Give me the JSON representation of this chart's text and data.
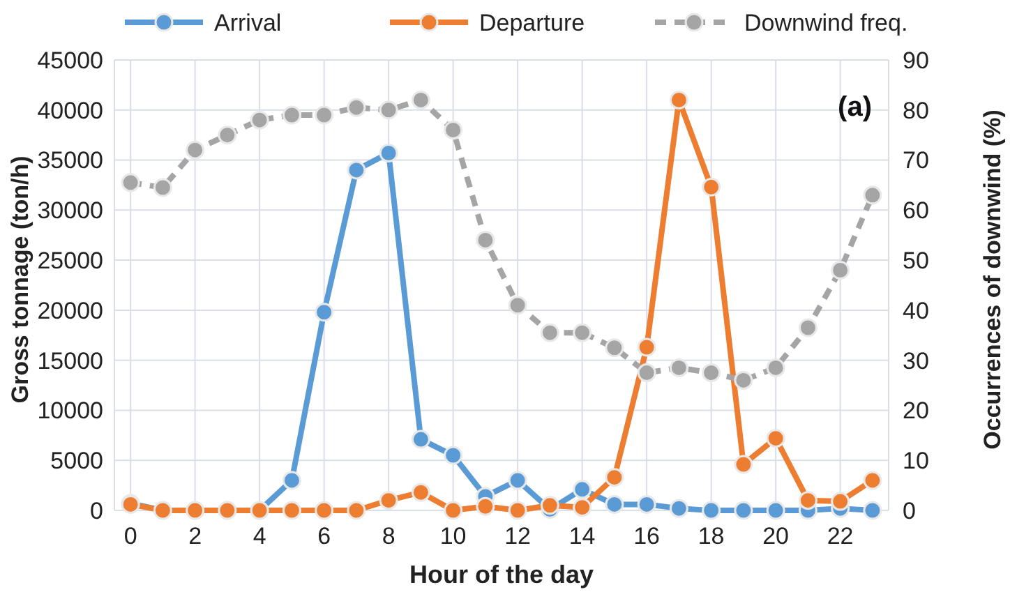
{
  "chart_data": {
    "type": "line",
    "xlabel": "Hour of the day",
    "ylabel": "Gross tonnage (ton/h)",
    "y2label": "Occurrences of downwind (%)",
    "annotations": [
      "(a)"
    ],
    "x": [
      0,
      1,
      2,
      3,
      4,
      5,
      6,
      7,
      8,
      9,
      10,
      11,
      12,
      13,
      14,
      15,
      16,
      17,
      18,
      19,
      20,
      21,
      22,
      23
    ],
    "xlim": [
      -0.5,
      23.5
    ],
    "xticks": [
      0,
      2,
      4,
      6,
      8,
      10,
      12,
      14,
      16,
      18,
      20,
      22
    ],
    "ylim": [
      0,
      45000
    ],
    "yticks": [
      0,
      5000,
      10000,
      15000,
      20000,
      25000,
      30000,
      35000,
      40000,
      45000
    ],
    "y2lim": [
      0,
      90
    ],
    "y2ticks": [
      0,
      10,
      20,
      30,
      40,
      50,
      60,
      70,
      80,
      90
    ],
    "grid": true,
    "legend": "top",
    "marker": "circle",
    "series": [
      {
        "name": "Arrival",
        "color": "#5b9bd5",
        "line_style": "solid",
        "values": [
          700,
          0,
          0,
          0,
          0,
          3000,
          19800,
          34000,
          35700,
          7100,
          5500,
          1400,
          3000,
          100,
          2100,
          600,
          600,
          200,
          0,
          0,
          0,
          0,
          200,
          0
        ]
      },
      {
        "name": "Departure",
        "color": "#ed7d31",
        "line_style": "solid",
        "values": [
          600,
          0,
          0,
          0,
          0,
          0,
          0,
          0,
          1000,
          1800,
          0,
          400,
          0,
          500,
          300,
          3300,
          16300,
          41000,
          32300,
          4600,
          7200,
          1000,
          900,
          3000
        ]
      },
      {
        "name": "Downwind freq.",
        "color": "#a5a5a5",
        "line_style": "dashed",
        "axis": "y2",
        "values": [
          65.5,
          64.5,
          72,
          75,
          78,
          79,
          79,
          80.5,
          80,
          82,
          76,
          54,
          41,
          35.5,
          35.5,
          32.5,
          27.5,
          28.5,
          27.5,
          26,
          28.5,
          36.5,
          48,
          63
        ]
      }
    ]
  }
}
